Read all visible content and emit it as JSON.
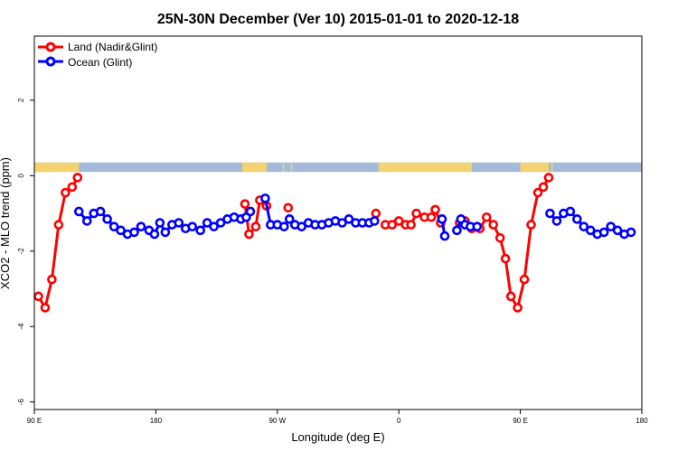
{
  "chart_data": {
    "type": "line",
    "title": "25N-30N December (Ver 10)   2015-01-01 to 2020-12-18",
    "xlabel": "Longitude (deg E)",
    "ylabel": "XCO2 - MLO trend (ppm)",
    "x_ticks": [
      {
        "value": 90,
        "label": "90 E"
      },
      {
        "value": 180,
        "label": "180"
      },
      {
        "value": 270,
        "label": "90 W"
      },
      {
        "value": 360,
        "label": "0"
      },
      {
        "value": 450,
        "label": "90 E"
      },
      {
        "value": 540,
        "label": "180"
      }
    ],
    "y_ticks": [
      {
        "value": 2,
        "label": "2"
      },
      {
        "value": 0,
        "label": "0"
      },
      {
        "value": -2,
        "label": "-2"
      },
      {
        "value": -4,
        "label": "-4"
      },
      {
        "value": -6,
        "label": "-6"
      }
    ],
    "xlim": [
      90,
      540
    ],
    "ylim": [
      -6.2,
      3.7
    ],
    "colors": {
      "land": "#ff0000",
      "ocean": "#0000ff",
      "land_band": "#f2d36f",
      "ocean_band": "#a4bad8",
      "axis": "#000000"
    },
    "surface_band": {
      "y_range": [
        0.1,
        0.35
      ],
      "land_spans": [
        [
          90,
          123
        ],
        [
          244,
          262
        ],
        [
          274,
          275
        ],
        [
          280,
          281
        ],
        [
          345,
          414
        ],
        [
          450,
          471
        ],
        [
          473,
          474
        ]
      ]
    },
    "series": [
      {
        "name": "Land (Nadir&Glint)",
        "color": "#ff0000",
        "segments": [
          [
            [
              93,
              -3.2
            ],
            [
              98,
              -3.5
            ],
            [
              103,
              -2.75
            ],
            [
              108,
              -1.3
            ],
            [
              113,
              -0.45
            ],
            [
              118,
              -0.3
            ],
            [
              122,
              -0.05
            ]
          ],
          [
            [
              246,
              -0.75
            ],
            [
              249,
              -1.55
            ],
            [
              254,
              -1.35
            ],
            [
              257,
              -0.65
            ],
            [
              262,
              -0.8
            ]
          ],
          [
            [
              278,
              -0.85
            ]
          ],
          [
            [
              343,
              -1.0
            ]
          ],
          [
            [
              350,
              -1.3
            ],
            [
              355,
              -1.3
            ],
            [
              360,
              -1.2
            ],
            [
              365,
              -1.3
            ],
            [
              369,
              -1.3
            ],
            [
              373,
              -1.0
            ],
            [
              379,
              -1.1
            ],
            [
              384,
              -1.1
            ],
            [
              387,
              -0.9
            ],
            [
              391,
              -1.25
            ]
          ],
          [
            [
              405,
              -1.25
            ],
            [
              409,
              -1.2
            ]
          ],
          [
            [
              414,
              -1.4
            ],
            [
              420,
              -1.4
            ],
            [
              425,
              -1.1
            ],
            [
              430,
              -1.3
            ],
            [
              435,
              -1.65
            ],
            [
              439,
              -2.2
            ],
            [
              443,
              -3.2
            ],
            [
              448,
              -3.5
            ],
            [
              453,
              -2.75
            ],
            [
              458,
              -1.3
            ],
            [
              463,
              -0.45
            ],
            [
              467,
              -0.3
            ],
            [
              471,
              -0.05
            ]
          ]
        ]
      },
      {
        "name": "Ocean (Glint)",
        "color": "#0000ff",
        "segments": [
          [
            [
              123,
              -0.95
            ],
            [
              129,
              -1.2
            ],
            [
              134,
              -1.0
            ],
            [
              139,
              -0.95
            ],
            [
              144,
              -1.15
            ],
            [
              149,
              -1.35
            ],
            [
              154,
              -1.45
            ],
            [
              159,
              -1.55
            ],
            [
              164,
              -1.5
            ],
            [
              169,
              -1.35
            ],
            [
              175,
              -1.45
            ],
            [
              179,
              -1.55
            ],
            [
              183,
              -1.25
            ],
            [
              187,
              -1.5
            ],
            [
              192,
              -1.3
            ],
            [
              197,
              -1.25
            ],
            [
              202,
              -1.4
            ],
            [
              207,
              -1.35
            ],
            [
              213,
              -1.45
            ],
            [
              218,
              -1.25
            ],
            [
              223,
              -1.35
            ],
            [
              228,
              -1.25
            ],
            [
              233,
              -1.15
            ],
            [
              238,
              -1.1
            ],
            [
              243,
              -1.15
            ],
            [
              247,
              -1.1
            ],
            [
              250,
              -0.95
            ]
          ],
          [
            [
              261,
              -0.6
            ],
            [
              265,
              -1.3
            ],
            [
              270,
              -1.3
            ],
            [
              275,
              -1.35
            ],
            [
              279,
              -1.15
            ],
            [
              283,
              -1.3
            ],
            [
              288,
              -1.35
            ],
            [
              293,
              -1.25
            ],
            [
              298,
              -1.3
            ],
            [
              303,
              -1.3
            ],
            [
              308,
              -1.25
            ],
            [
              313,
              -1.2
            ],
            [
              318,
              -1.25
            ],
            [
              323,
              -1.15
            ],
            [
              328,
              -1.25
            ],
            [
              333,
              -1.25
            ],
            [
              338,
              -1.25
            ],
            [
              342,
              -1.2
            ]
          ],
          [
            [
              392,
              -1.15
            ],
            [
              394,
              -1.6
            ]
          ],
          [
            [
              403,
              -1.45
            ],
            [
              406,
              -1.15
            ],
            [
              409,
              -1.3
            ],
            [
              413,
              -1.35
            ],
            [
              418,
              -1.35
            ]
          ],
          [
            [
              472,
              -1.0
            ],
            [
              477,
              -1.2
            ],
            [
              482,
              -1.0
            ],
            [
              487,
              -0.95
            ],
            [
              492,
              -1.15
            ],
            [
              497,
              -1.35
            ],
            [
              502,
              -1.45
            ],
            [
              507,
              -1.55
            ],
            [
              512,
              -1.5
            ],
            [
              517,
              -1.35
            ],
            [
              522,
              -1.45
            ],
            [
              527,
              -1.55
            ],
            [
              532,
              -1.5
            ]
          ]
        ]
      }
    ],
    "legend": {
      "position": "top-left",
      "entries": [
        "Land (Nadir&Glint)",
        "Ocean (Glint)"
      ]
    }
  }
}
